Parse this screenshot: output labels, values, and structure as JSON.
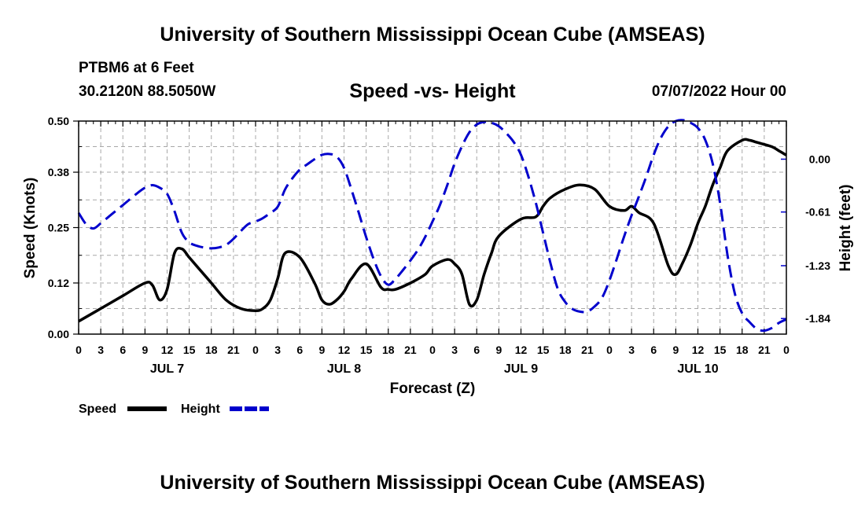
{
  "header": {
    "title": "University of Southern Mississippi Ocean Cube (AMSEAS)",
    "station": "PTBM6 at 6 Feet",
    "coords": "30.2120N  88.5050W",
    "subtitle": "Speed -vs- Height",
    "datetime": "07/07/2022 Hour 00"
  },
  "footer": {
    "title": "University of Southern Mississippi Ocean Cube (AMSEAS)"
  },
  "chart_data": {
    "type": "line",
    "title": "Speed -vs- Height",
    "xlabel": "Forecast (Z)",
    "ylabel": "Speed (Knots)",
    "y2label": "Height (feet)",
    "grid": true,
    "xlim": [
      0,
      96
    ],
    "ylim": [
      0,
      0.5
    ],
    "y2lim": [
      -2.02,
      0.44
    ],
    "x_tick_labels": [
      "0",
      "3",
      "6",
      "9",
      "12",
      "15",
      "18",
      "21",
      "0",
      "3",
      "6",
      "9",
      "12",
      "15",
      "18",
      "21",
      "0",
      "3",
      "6",
      "9",
      "12",
      "15",
      "18",
      "21",
      "0",
      "3",
      "6",
      "9",
      "12",
      "15",
      "18",
      "21",
      "0"
    ],
    "y_tick_labels": [
      "0.00",
      "0.12",
      "0.25",
      "0.38",
      "0.50"
    ],
    "y2_tick_labels": [
      "0.00",
      "-0.61",
      "-1.23",
      "-1.84"
    ],
    "day_labels": [
      {
        "label": "JUL 7",
        "hour": 12
      },
      {
        "label": "JUL 8",
        "hour": 36
      },
      {
        "label": "JUL 9",
        "hour": 60
      },
      {
        "label": "JUL 10",
        "hour": 84
      }
    ],
    "legend": [
      {
        "label": "Speed",
        "color": "#000000",
        "style": "solid"
      },
      {
        "label": "Height",
        "color": "#0000cc",
        "style": "dashed"
      }
    ],
    "series": [
      {
        "name": "Speed",
        "axis": "left",
        "color": "#000000",
        "x": [
          0,
          3,
          6,
          9,
          10,
          11,
          12,
          13,
          14,
          15,
          16,
          18,
          20,
          22,
          24,
          25,
          26,
          27,
          28,
          30,
          32,
          33,
          34,
          35,
          36,
          37,
          39,
          41,
          42,
          43,
          45,
          47,
          48,
          50,
          51,
          52,
          53,
          54,
          55,
          56,
          57,
          60,
          62,
          63,
          64,
          66,
          68,
          70,
          72,
          74,
          75,
          76,
          78,
          80,
          81,
          82,
          83,
          84,
          85,
          86,
          87,
          88,
          90,
          91,
          92,
          94,
          95,
          96
        ],
        "values": [
          0.03,
          0.06,
          0.09,
          0.12,
          0.115,
          0.08,
          0.105,
          0.19,
          0.2,
          0.18,
          0.16,
          0.12,
          0.08,
          0.06,
          0.055,
          0.06,
          0.08,
          0.13,
          0.19,
          0.18,
          0.12,
          0.08,
          0.07,
          0.08,
          0.1,
          0.13,
          0.165,
          0.11,
          0.105,
          0.105,
          0.12,
          0.14,
          0.16,
          0.175,
          0.165,
          0.14,
          0.07,
          0.08,
          0.14,
          0.19,
          0.23,
          0.27,
          0.275,
          0.3,
          0.32,
          0.34,
          0.35,
          0.34,
          0.3,
          0.29,
          0.3,
          0.285,
          0.26,
          0.16,
          0.14,
          0.17,
          0.21,
          0.26,
          0.3,
          0.35,
          0.39,
          0.43,
          0.455,
          0.455,
          0.45,
          0.44,
          0.43,
          0.42
        ]
      },
      {
        "name": "Height",
        "axis": "right",
        "color": "#0000cc",
        "x": [
          0,
          1,
          2,
          3,
          4,
          5,
          6,
          7,
          8,
          9,
          10,
          11,
          12,
          13,
          14,
          15,
          16,
          17,
          18,
          19,
          20,
          21,
          22,
          23,
          24,
          25,
          26,
          27,
          28,
          29,
          30,
          31,
          32,
          33,
          34,
          35,
          36,
          37,
          38,
          39,
          40,
          41,
          42,
          43,
          44,
          45,
          46,
          47,
          48,
          49,
          50,
          51,
          52,
          53,
          54,
          55,
          56,
          57,
          58,
          59,
          60,
          61,
          62,
          63,
          64,
          65,
          66,
          67,
          68,
          69,
          70,
          71,
          72,
          73,
          74,
          75,
          76,
          77,
          78,
          79,
          80,
          81,
          82,
          83,
          84,
          85,
          86,
          87,
          88,
          89,
          90,
          91,
          92,
          93,
          94,
          95,
          96
        ],
        "values": [
          -0.62,
          -0.75,
          -0.8,
          -0.74,
          -0.67,
          -0.6,
          -0.53,
          -0.46,
          -0.39,
          -0.33,
          -0.3,
          -0.33,
          -0.4,
          -0.6,
          -0.85,
          -0.96,
          -1.0,
          -1.02,
          -1.03,
          -1.02,
          -0.99,
          -0.92,
          -0.83,
          -0.75,
          -0.72,
          -0.68,
          -0.62,
          -0.55,
          -0.35,
          -0.22,
          -0.12,
          -0.06,
          0.0,
          0.05,
          0.06,
          0.03,
          -0.1,
          -0.35,
          -0.62,
          -0.9,
          -1.15,
          -1.35,
          -1.45,
          -1.38,
          -1.28,
          -1.17,
          -1.05,
          -0.9,
          -0.72,
          -0.53,
          -0.3,
          -0.05,
          0.15,
          0.31,
          0.4,
          0.43,
          0.42,
          0.38,
          0.3,
          0.2,
          0.05,
          -0.2,
          -0.5,
          -0.85,
          -1.2,
          -1.5,
          -1.65,
          -1.73,
          -1.76,
          -1.76,
          -1.7,
          -1.6,
          -1.4,
          -1.15,
          -0.89,
          -0.65,
          -0.43,
          -0.2,
          0.05,
          0.25,
          0.38,
          0.44,
          0.45,
          0.42,
          0.36,
          0.22,
          -0.05,
          -0.5,
          -1.1,
          -1.55,
          -1.78,
          -1.88,
          -1.96,
          -1.98,
          -1.95,
          -1.89,
          -1.85
        ]
      }
    ]
  }
}
